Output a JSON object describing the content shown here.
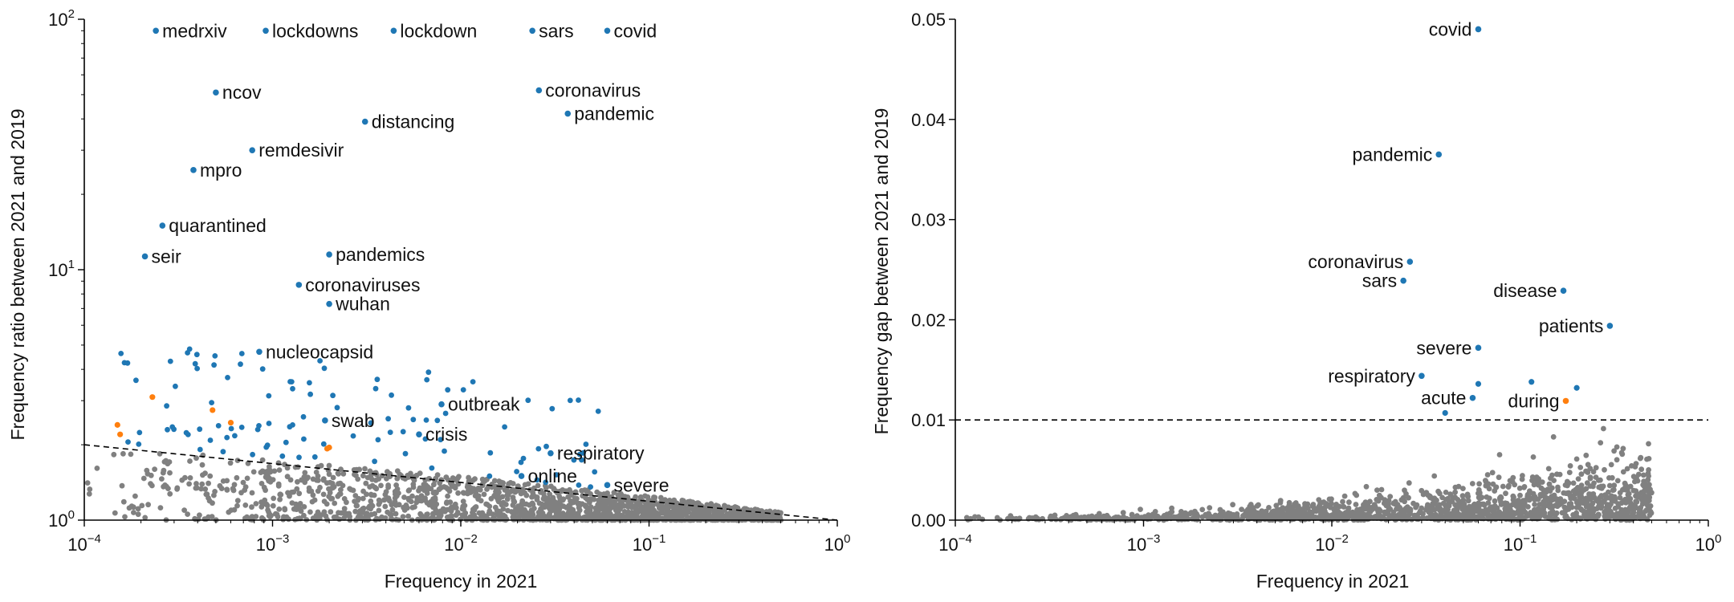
{
  "colors": {
    "significant": "#1f77b4",
    "special": "#ff7f0e",
    "background": "#808080",
    "axis": "#000000",
    "threshold": "#000000"
  },
  "chart_data": [
    {
      "type": "scatter",
      "xlabel": "Frequency in 2021",
      "ylabel": "Frequency ratio between 2021 and 2019",
      "xscale": "log",
      "yscale": "log",
      "xlim": [
        0.0001,
        1
      ],
      "ylim": [
        1,
        100
      ],
      "xticks": [
        {
          "value": 0.0001,
          "base": "10",
          "exp": "−4"
        },
        {
          "value": 0.001,
          "base": "10",
          "exp": "−3"
        },
        {
          "value": 0.01,
          "base": "10",
          "exp": "−2"
        },
        {
          "value": 0.1,
          "base": "10",
          "exp": "−1"
        },
        {
          "value": 1,
          "base": "10",
          "exp": "0"
        }
      ],
      "yticks": [
        {
          "value": 1,
          "base": "10",
          "exp": "0"
        },
        {
          "value": 10,
          "base": "10",
          "exp": "1"
        },
        {
          "value": 100,
          "base": "10",
          "exp": "2"
        }
      ],
      "threshold": {
        "style": "dashed",
        "from": [
          0.0001,
          2.0
        ],
        "to": [
          1,
          1.0
        ]
      },
      "grid": false,
      "legend": "none",
      "labeled_points": [
        {
          "label": "medrxiv",
          "x": 0.00024,
          "y": 90,
          "color": "significant"
        },
        {
          "label": "lockdowns",
          "x": 0.00092,
          "y": 90,
          "color": "significant"
        },
        {
          "label": "lockdown",
          "x": 0.0044,
          "y": 90,
          "color": "significant"
        },
        {
          "label": "sars",
          "x": 0.024,
          "y": 90,
          "color": "significant"
        },
        {
          "label": "covid",
          "x": 0.06,
          "y": 90,
          "color": "significant"
        },
        {
          "label": "ncov",
          "x": 0.0005,
          "y": 51,
          "color": "significant"
        },
        {
          "label": "coronavirus",
          "x": 0.026,
          "y": 52,
          "color": "significant"
        },
        {
          "label": "pandemic",
          "x": 0.037,
          "y": 42,
          "color": "significant"
        },
        {
          "label": "distancing",
          "x": 0.0031,
          "y": 39,
          "color": "significant"
        },
        {
          "label": "remdesivir",
          "x": 0.00078,
          "y": 30,
          "color": "significant"
        },
        {
          "label": "mpro",
          "x": 0.00038,
          "y": 25,
          "color": "significant"
        },
        {
          "label": "quarantined",
          "x": 0.00026,
          "y": 15,
          "color": "significant"
        },
        {
          "label": "seir",
          "x": 0.00021,
          "y": 11.3,
          "color": "significant"
        },
        {
          "label": "pandemics",
          "x": 0.002,
          "y": 11.5,
          "color": "significant"
        },
        {
          "label": "coronaviruses",
          "x": 0.00138,
          "y": 8.7,
          "color": "significant"
        },
        {
          "label": "wuhan",
          "x": 0.002,
          "y": 7.3,
          "color": "significant"
        },
        {
          "label": "nucleocapsid",
          "x": 0.00085,
          "y": 4.7,
          "color": "significant"
        },
        {
          "label": "outbreak",
          "x": 0.0079,
          "y": 2.9,
          "color": "significant"
        },
        {
          "label": "swab",
          "x": 0.0019,
          "y": 2.5,
          "color": "significant"
        },
        {
          "label": "crisis",
          "x": 0.006,
          "y": 2.2,
          "color": "significant"
        },
        {
          "label": "respiratory",
          "x": 0.03,
          "y": 1.85,
          "color": "significant"
        },
        {
          "label": "online",
          "x": 0.021,
          "y": 1.5,
          "color": "significant"
        },
        {
          "label": "severe",
          "x": 0.06,
          "y": 1.38,
          "color": "significant"
        }
      ],
      "special_points": [
        {
          "x": 0.00015,
          "y": 2.4
        },
        {
          "x": 0.000155,
          "y": 2.2
        },
        {
          "x": 0.00023,
          "y": 3.1
        },
        {
          "x": 0.00048,
          "y": 2.75
        },
        {
          "x": 0.0006,
          "y": 2.45
        },
        {
          "x": 0.002,
          "y": 1.95
        },
        {
          "x": 0.00195,
          "y": 1.93
        }
      ]
    },
    {
      "type": "scatter",
      "xlabel": "Frequency in 2021",
      "ylabel": "Frequency gap between 2021 and 2019",
      "xscale": "log",
      "yscale": "linear",
      "xlim": [
        0.0001,
        1
      ],
      "ylim": [
        0,
        0.05
      ],
      "xticks": [
        {
          "value": 0.0001,
          "base": "10",
          "exp": "−4"
        },
        {
          "value": 0.001,
          "base": "10",
          "exp": "−3"
        },
        {
          "value": 0.01,
          "base": "10",
          "exp": "−2"
        },
        {
          "value": 0.1,
          "base": "10",
          "exp": "−1"
        },
        {
          "value": 1,
          "base": "10",
          "exp": "0"
        }
      ],
      "yticks": [
        {
          "value": 0,
          "label": "0.00"
        },
        {
          "value": 0.01,
          "label": "0.01"
        },
        {
          "value": 0.02,
          "label": "0.02"
        },
        {
          "value": 0.03,
          "label": "0.03"
        },
        {
          "value": 0.04,
          "label": "0.04"
        },
        {
          "value": 0.05,
          "label": "0.05"
        }
      ],
      "threshold": {
        "style": "dashed",
        "y": 0.01
      },
      "grid": false,
      "legend": "none",
      "labeled_points": [
        {
          "label": "covid",
          "x": 0.06,
          "y": 0.049,
          "color": "significant"
        },
        {
          "label": "pandemic",
          "x": 0.037,
          "y": 0.0365,
          "color": "significant"
        },
        {
          "label": "coronavirus",
          "x": 0.026,
          "y": 0.0258,
          "color": "significant"
        },
        {
          "label": "sars",
          "x": 0.024,
          "y": 0.0239,
          "color": "significant"
        },
        {
          "label": "disease",
          "x": 0.17,
          "y": 0.0229,
          "color": "significant"
        },
        {
          "label": "patients",
          "x": 0.3,
          "y": 0.0194,
          "color": "significant"
        },
        {
          "label": "severe",
          "x": 0.06,
          "y": 0.0172,
          "color": "significant"
        },
        {
          "label": "respiratory",
          "x": 0.03,
          "y": 0.0144,
          "color": "significant"
        },
        {
          "label": "acute",
          "x": 0.056,
          "y": 0.0122,
          "color": "significant"
        },
        {
          "label": "during",
          "x": 0.175,
          "y": 0.0119,
          "color": "special"
        }
      ],
      "unlabeled_significant_points": [
        {
          "x": 0.06,
          "y": 0.0136
        },
        {
          "x": 0.115,
          "y": 0.0138
        },
        {
          "x": 0.2,
          "y": 0.0132
        },
        {
          "x": 0.04,
          "y": 0.0107
        }
      ]
    }
  ]
}
